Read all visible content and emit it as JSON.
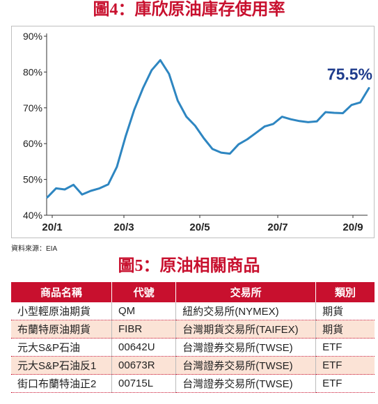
{
  "figure4": {
    "title": "圖4：庫欣原油庫存使用率",
    "source": "資料來源：EIA"
  },
  "chart_data": {
    "type": "line",
    "title": "圖4：庫欣原油庫存使用率",
    "xlabel": "",
    "ylabel": "",
    "ylim": [
      40,
      90
    ],
    "yticks": [
      "40%",
      "50%",
      "60%",
      "70%",
      "80%",
      "90%"
    ],
    "xticks": [
      "20/1",
      "20/3",
      "20/5",
      "20/7",
      "20/9"
    ],
    "grid": false,
    "annotation": "75.5%",
    "series": [
      {
        "values": [
          45.0,
          47.5,
          47.2,
          48.5,
          45.8,
          46.8,
          47.5,
          48.6,
          53.5,
          62.0,
          69.5,
          75.5,
          80.5,
          83.3,
          79.5,
          72.0,
          67.5,
          65.0,
          61.5,
          58.5,
          57.5,
          57.2,
          59.8,
          61.2,
          63.0,
          64.8,
          65.5,
          67.5,
          66.8,
          66.3,
          66.0,
          66.2,
          68.8,
          68.6,
          68.5,
          70.8,
          71.5,
          75.5
        ]
      }
    ]
  },
  "figure5": {
    "title": "圖5：原油相關商品",
    "headers": [
      "商品名稱",
      "代號",
      "交易所",
      "類別"
    ],
    "rows": [
      [
        "小型輕原油期貨",
        "QM",
        "紐約交易所(NYMEX)",
        "期貨"
      ],
      [
        "布蘭特原油期貨",
        "FIBR",
        "台灣期貨交易所(TAIFEX)",
        "期貨"
      ],
      [
        "元大S&P石油",
        "00642U",
        "台灣證券交易所(TWSE)",
        "ETF"
      ],
      [
        "元大S&P石油反1",
        "00673R",
        "台灣證券交易所(TWSE)",
        "ETF"
      ],
      [
        "街口布蘭特油正2",
        "00715L",
        "台灣證券交易所(TWSE)",
        "ETF"
      ]
    ]
  },
  "colors": {
    "title_red": "#c8102e",
    "line_blue": "#2e86c1",
    "annotation_blue": "#1f3c8c",
    "row_alt": "#fbe3d6"
  }
}
